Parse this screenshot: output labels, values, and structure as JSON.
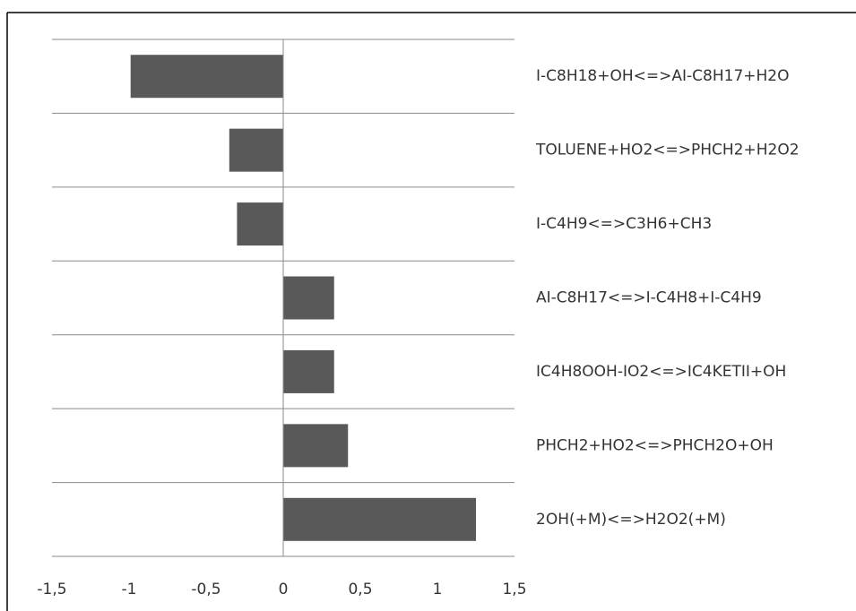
{
  "chart_data": {
    "type": "hbar",
    "categories": [
      "I-C8H18+OH<=>AI-C8H17+H2O",
      "TOLUENE+HO2<=>PHCH2+H2O2",
      "I-C4H9<=>C3H6+CH3",
      "AI-C8H17<=>I-C4H8+I-C4H9",
      "IC4H8OOH-IO2<=>IC4KETII+OH",
      "PHCH2+HO2<=>PHCH2O+OH",
      "2OH(+M)<=>H2O2(+M)"
    ],
    "values": [
      -0.99,
      -0.35,
      -0.3,
      0.33,
      0.33,
      0.42,
      1.25
    ],
    "color": "#595959",
    "xlim": [
      -1.5,
      1.5
    ],
    "xticks": [
      {
        "value": -1.5,
        "label": "-1,5"
      },
      -1,
      {
        "value": -0.5,
        "label": "-0,5"
      },
      0,
      {
        "value": 0.5,
        "label": "0,5"
      },
      1,
      {
        "value": 1.5,
        "label": "1,5"
      }
    ],
    "grid": true
  }
}
